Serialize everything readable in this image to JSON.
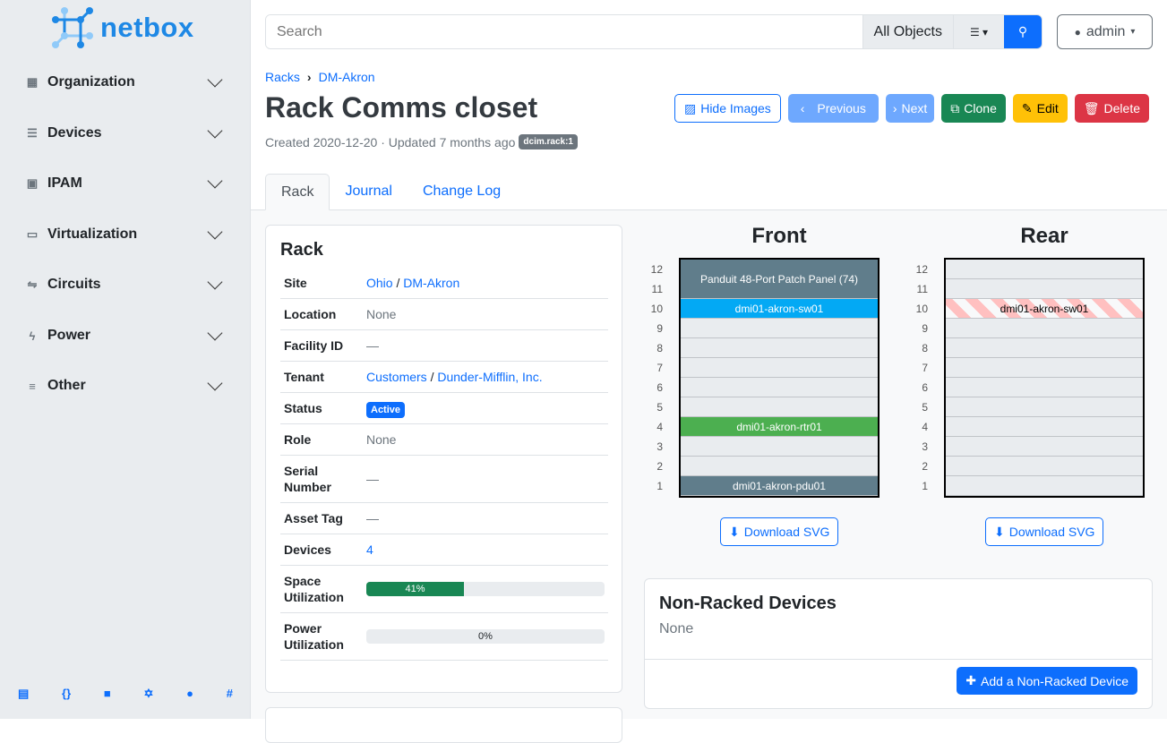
{
  "brand": "netbox",
  "sidebar": {
    "items": [
      {
        "label": "Organization",
        "icon": "building-icon"
      },
      {
        "label": "Devices",
        "icon": "server-icon"
      },
      {
        "label": "IPAM",
        "icon": "ip-icon"
      },
      {
        "label": "Virtualization",
        "icon": "monitor-icon"
      },
      {
        "label": "Circuits",
        "icon": "circuit-icon"
      },
      {
        "label": "Power",
        "icon": "flash-icon"
      },
      {
        "label": "Other",
        "icon": "notes-icon"
      }
    ],
    "footer_icons": [
      "book-icon",
      "api-icon",
      "docs-icon",
      "graphql-icon",
      "github-icon",
      "slack-icon"
    ]
  },
  "search": {
    "placeholder": "Search",
    "scope": "All Objects"
  },
  "user": {
    "name": "admin"
  },
  "breadcrumb": [
    "Racks",
    "DM-Akron"
  ],
  "page": {
    "title": "Rack Comms closet",
    "meta": "Created 2020-12-20 · Updated 7 months ago",
    "tag": "dcim.rack:1"
  },
  "actions": {
    "hide_images": "Hide Images",
    "previous": "Previous",
    "next": "Next",
    "clone": "Clone",
    "edit": "Edit",
    "delete": "Delete"
  },
  "colors": {
    "primary": "#0d6efd",
    "previous_next": "#6ea8fe",
    "clone": "#198754",
    "edit": "#ffc107",
    "delete": "#dc3545"
  },
  "tabs": [
    "Rack",
    "Journal",
    "Change Log"
  ],
  "rack_card": {
    "title": "Rack",
    "site": {
      "label": "Site",
      "region": "Ohio",
      "site": "DM-Akron"
    },
    "location": {
      "label": "Location",
      "value": "None"
    },
    "facility": {
      "label": "Facility ID",
      "value": "—"
    },
    "tenant": {
      "label": "Tenant",
      "group": "Customers",
      "tenant": "Dunder-Mifflin, Inc."
    },
    "status": {
      "label": "Status",
      "value": "Active"
    },
    "role": {
      "label": "Role",
      "value": "None"
    },
    "serial": {
      "label": "Serial Number",
      "value": "—"
    },
    "asset": {
      "label": "Asset Tag",
      "value": "—"
    },
    "devices": {
      "label": "Devices",
      "value": "4"
    },
    "space": {
      "label": "Space Utilization",
      "percent": 41,
      "text": "41%"
    },
    "power": {
      "label": "Power Utilization",
      "percent": 0,
      "text": "0%"
    }
  },
  "elevation": {
    "front_title": "Front",
    "rear_title": "Rear",
    "download": "Download SVG",
    "units": [
      "12",
      "11",
      "10",
      "9",
      "8",
      "7",
      "6",
      "5",
      "4",
      "3",
      "2",
      "1"
    ],
    "front_devices": [
      {
        "name": "Panduit 48-Port Patch Panel (74)",
        "top_u": 12,
        "height": 2,
        "color": "#607d8b"
      },
      {
        "name": "dmi01-akron-sw01",
        "top_u": 10,
        "height": 1,
        "color": "#03a9f4"
      },
      {
        "name": "dmi01-akron-rtr01",
        "top_u": 4,
        "height": 1,
        "color": "#4caf50"
      },
      {
        "name": "dmi01-akron-pdu01",
        "top_u": 1,
        "height": 1,
        "color": "#607d8b"
      }
    ],
    "rear_devices": [
      {
        "name": "dmi01-akron-sw01",
        "top_u": 10,
        "height": 1,
        "occupied_stripes": true
      }
    ]
  },
  "non_racked": {
    "title": "Non-Racked Devices",
    "value": "None",
    "add": "Add a Non-Racked Device"
  }
}
